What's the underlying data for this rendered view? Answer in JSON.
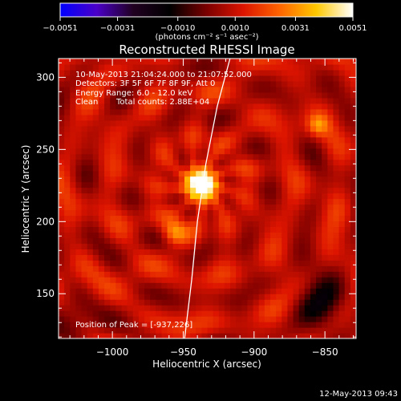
{
  "chart_data": {
    "type": "heatmap",
    "title": "Reconstructed RHESSI Image",
    "xlabel": "Heliocentric X (arcsec)",
    "ylabel": "Heliocentric Y (arcsec)",
    "xlim": [
      -1038,
      -828
    ],
    "ylim": [
      119,
      313
    ],
    "x_ticks": [
      -1000,
      -950,
      -900,
      -850
    ],
    "x_tick_labels": [
      "−1000",
      "−950",
      "−900",
      "−850"
    ],
    "y_ticks": [
      150,
      200,
      250,
      300
    ],
    "y_tick_labels": [
      "150",
      "200",
      "250",
      "300"
    ],
    "colorbar": {
      "min": -0.0051,
      "max": 0.0051,
      "ticks": [
        -0.0051,
        -0.0031,
        -0.001,
        0.001,
        0.0031,
        0.0051
      ],
      "tick_labels": [
        "−0.0051",
        "−0.0031",
        "−0.0010",
        "0.0010",
        "0.0031",
        "0.0051"
      ],
      "units_label": "(photons cm⁻² s⁻¹ asec⁻²)",
      "colormap": [
        "#0000ff",
        "#4b00c8",
        "#200020",
        "#000000",
        "#7a0000",
        "#dc1400",
        "#ff6400",
        "#ffc800",
        "#ffffff"
      ]
    },
    "annotations": {
      "time_range": "10-May-2013 21:04:24.000 to 21:07:52.000",
      "detectors": "Detectors: 3F 5F 6F 7F 8F 9F, Att 0",
      "energy_range": "Energy Range: 6.0 - 12.0 keV",
      "algorithm": "Clean",
      "total_counts": "Total counts: 2.88E+04",
      "peak": "Position of Peak = [-937,226]"
    },
    "peak_position": [
      -937,
      226
    ],
    "limb_curve": [
      [
        -949,
        119
      ],
      [
        -944,
        160
      ],
      [
        -940,
        200
      ],
      [
        -934,
        240
      ],
      [
        -926,
        280
      ],
      [
        -917,
        313
      ]
    ],
    "sources": [
      {
        "x": -937,
        "y": 226,
        "peak": 0.0051,
        "sigma": 9
      },
      {
        "x": -956,
        "y": 193,
        "peak": 0.0022,
        "sigma": 6
      },
      {
        "x": -855,
        "y": 267,
        "peak": 0.0016,
        "sigma": 5
      }
    ],
    "negative_regions": [
      {
        "x": -848,
        "y": 145,
        "peak": -0.0018,
        "sigma": 14
      },
      {
        "x": -1030,
        "y": 128,
        "peak": -0.001,
        "sigma": 10
      }
    ]
  },
  "footer": {
    "timestamp": "12-May-2013 09:43"
  }
}
